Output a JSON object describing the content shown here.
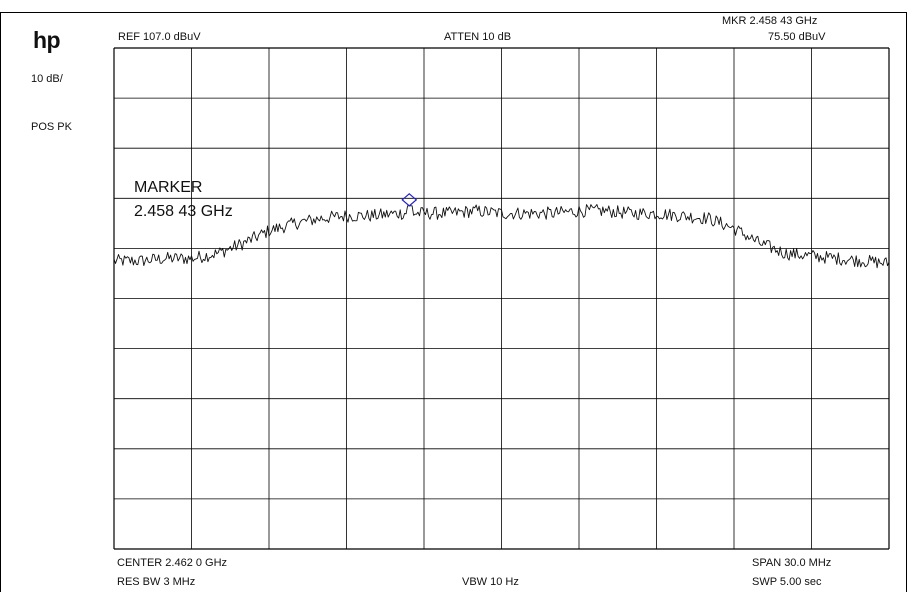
{
  "header": {
    "logo": "hp",
    "ref_level": "REF  107.0 dBuV",
    "attenuation": "ATTEN 10 dB",
    "marker_freq": "MKR 2.458 43 GHz",
    "marker_level": "75.50 dBuV"
  },
  "left_panel": {
    "scale": "10 dB/",
    "detector": "POS PK"
  },
  "marker_annotation": {
    "label": "MARKER",
    "freq": "2.458 43 GHz"
  },
  "footer": {
    "center": "CENTER 2.462 0 GHz",
    "span": "SPAN 30.0 MHz",
    "res_bw": "RES BW 3 MHz",
    "vbw": "VBW 10  Hz",
    "sweep": "SWP 5.00  sec"
  },
  "colors": {
    "trace": "#111111",
    "grid": "#000000",
    "marker": "#2222cc"
  },
  "chart_data": {
    "type": "line",
    "x_unit": "GHz",
    "y_unit": "dBuV",
    "xlim": [
      2.447,
      2.477
    ],
    "ylim": [
      7.0,
      107.0
    ],
    "grid": true,
    "grid_divisions": {
      "x": 10,
      "y": 10
    },
    "series": [
      {
        "x": [
          2.447,
          2.448,
          2.449,
          2.45,
          2.451,
          2.452,
          2.453,
          2.454,
          2.455,
          2.456,
          2.457,
          2.458,
          2.459,
          2.46,
          2.461,
          2.462,
          2.463,
          2.464,
          2.465,
          2.466,
          2.467,
          2.468,
          2.469,
          2.47,
          2.471,
          2.472,
          2.473,
          2.474,
          2.475,
          2.476,
          2.477
        ],
        "y": [
          64.5,
          64.5,
          65.0,
          65.0,
          66.0,
          68.0,
          70.5,
          72.0,
          73.0,
          73.5,
          73.5,
          74.0,
          74.0,
          74.0,
          74.5,
          74.0,
          74.0,
          74.0,
          74.5,
          74.5,
          74.0,
          74.0,
          73.5,
          73.0,
          71.0,
          68.0,
          66.0,
          65.5,
          65.0,
          64.5,
          64.0
        ]
      }
    ],
    "marker": {
      "x": 2.45843,
      "y": 75.5
    }
  }
}
